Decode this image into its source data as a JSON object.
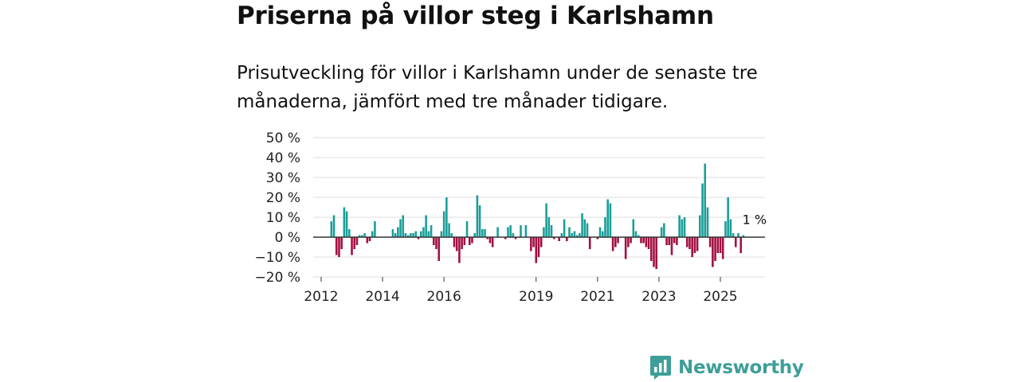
{
  "title": "Priserna på villor steg i Karlshamn",
  "subtitle": "Prisutveckling för villor i Karlshamn under de senaste tre månaderna, jämfört med tre månader tidigare.",
  "brand": {
    "name": "Newsworthy",
    "icon": "newsworthy-logo-icon"
  },
  "colors": {
    "positive": "#1a9e98",
    "negative": "#a2103f",
    "grid": "#dddddd",
    "zero": "#333333"
  },
  "chart_data": {
    "type": "bar",
    "title": "Priserna på villor steg i Karlshamn",
    "xlabel": "",
    "ylabel": "",
    "ylim": [
      -20,
      50
    ],
    "yticks": [
      -20,
      -10,
      0,
      10,
      20,
      30,
      40,
      50
    ],
    "ytick_labels": [
      "−20 %",
      "−10 %",
      "0 %",
      "10 %",
      "20 %",
      "30 %",
      "40 %",
      "50 %"
    ],
    "xticks": [
      2012,
      2014,
      2016,
      2019,
      2021,
      2023,
      2025
    ],
    "xtick_labels": [
      "2012",
      "2014",
      "2016",
      "2019",
      "2021",
      "2023",
      "2025"
    ],
    "x_start": 2012.0,
    "x_step": 0.0833333,
    "end_label": "1 %",
    "values": [
      0,
      0,
      0,
      0,
      8,
      11,
      -9,
      -10,
      -6,
      15,
      13,
      4,
      -9,
      -6,
      -4,
      1,
      1,
      2,
      -3,
      -2,
      3,
      8,
      0,
      0,
      0,
      0,
      0,
      0,
      4,
      2,
      5,
      9,
      11,
      2,
      1,
      2,
      2,
      3,
      -1,
      3,
      5,
      11,
      3,
      6,
      -4,
      -6,
      -12,
      3,
      13,
      20,
      7,
      2,
      -5,
      -7,
      -13,
      -6,
      -4,
      8,
      -4,
      -3,
      2,
      21,
      16,
      4,
      4,
      -1,
      -3,
      -5,
      0,
      5,
      0,
      0,
      -1,
      5,
      6,
      2,
      -1,
      0,
      6,
      0,
      6,
      0,
      -7,
      -5,
      -13,
      -10,
      -5,
      5,
      17,
      10,
      6,
      -1,
      0,
      -2,
      2,
      9,
      -2,
      5,
      2,
      3,
      1,
      2,
      12,
      9,
      7,
      -6,
      0,
      0,
      -1,
      5,
      3,
      10,
      19,
      17,
      -7,
      -5,
      -3,
      0,
      0,
      -11,
      -5,
      -3,
      9,
      3,
      1,
      -3,
      -3,
      -5,
      -6,
      -12,
      -15,
      -16,
      0,
      5,
      7,
      -4,
      -4,
      -9,
      -3,
      -4,
      11,
      9,
      10,
      -5,
      -6,
      -10,
      -8,
      -7,
      11,
      27,
      37,
      15,
      -5,
      -15,
      -12,
      -8,
      -8,
      -11,
      8,
      20,
      9,
      2,
      -5,
      2,
      -8,
      1
    ]
  }
}
